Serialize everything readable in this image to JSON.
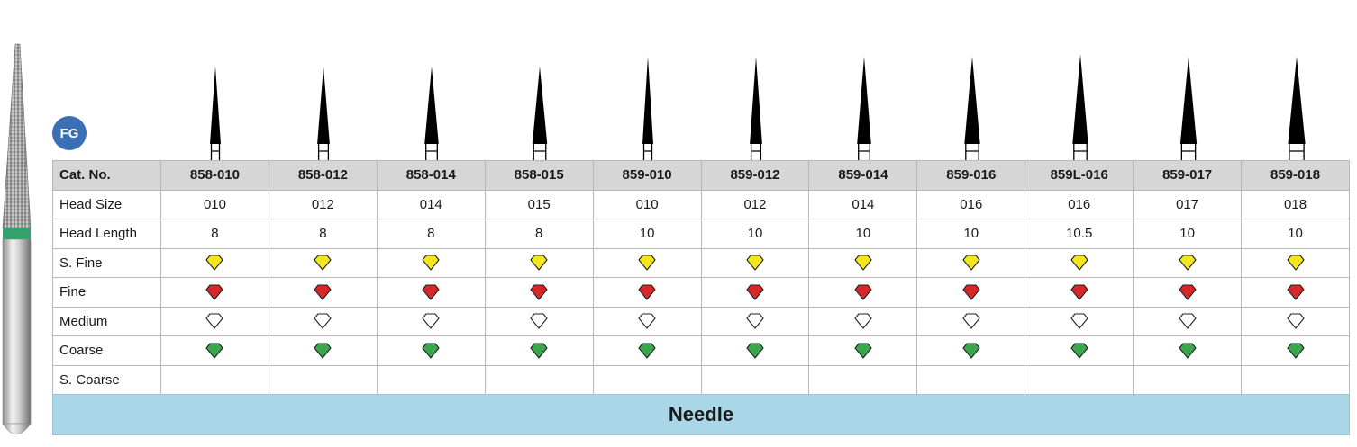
{
  "badge": "FG",
  "table": {
    "header_label": "Cat. No.",
    "cat_numbers": [
      "858-010",
      "858-012",
      "858-014",
      "858-015",
      "859-010",
      "859-012",
      "859-014",
      "859-016",
      "859L-016",
      "859-017",
      "859-018"
    ],
    "rows": [
      {
        "label": "Head Size",
        "type": "text",
        "values": [
          "010",
          "012",
          "014",
          "015",
          "010",
          "012",
          "014",
          "016",
          "016",
          "017",
          "018"
        ]
      },
      {
        "label": "Head Length",
        "type": "text",
        "values": [
          "8",
          "8",
          "8",
          "8",
          "10",
          "10",
          "10",
          "10",
          "10.5",
          "10",
          "10"
        ]
      },
      {
        "label": "S. Fine",
        "type": "grit",
        "color": "#f5e61a"
      },
      {
        "label": "Fine",
        "type": "grit",
        "color": "#d92626"
      },
      {
        "label": "Medium",
        "type": "grit",
        "color": "#ffffff"
      },
      {
        "label": "Coarse",
        "type": "grit",
        "color": "#3aa84a"
      },
      {
        "label": "S. Coarse",
        "type": "empty"
      }
    ]
  },
  "footer_label": "Needle",
  "icons": {
    "grit": "diamond-icon",
    "bur": "needle-bur-icon"
  }
}
